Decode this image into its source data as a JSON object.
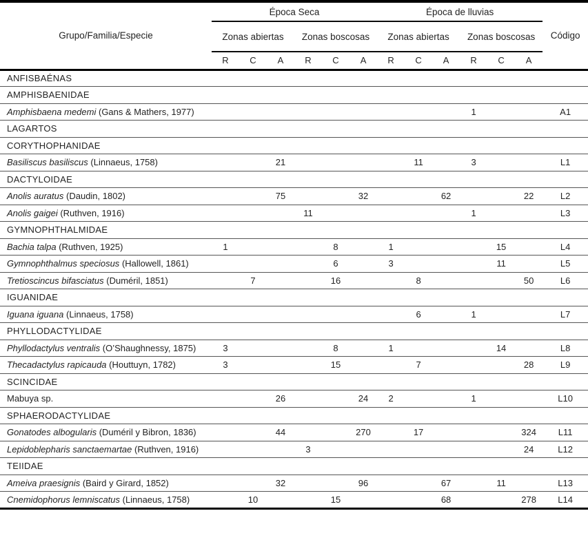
{
  "table": {
    "header": {
      "col1": "Grupo/Familia/Especie",
      "seasons": [
        "Época Seca",
        "Época de lluvias"
      ],
      "zones": [
        "Zonas abiertas",
        "Zonas boscosas",
        "Zonas abiertas",
        "Zonas boscosas"
      ],
      "subcols": [
        "R",
        "C",
        "A",
        "R",
        "C",
        "A",
        "R",
        "C",
        "A",
        "R",
        "C",
        "A"
      ],
      "code_col": "Código"
    },
    "rows": [
      {
        "type": "group",
        "label": "ANFISBAÉNAS"
      },
      {
        "type": "group",
        "label": "AMPHISBAENIDAE"
      },
      {
        "type": "species",
        "name": "Amphisbaena medemi",
        "authority": "(Gans & Mathers, 1977)",
        "values": [
          "",
          "",
          "",
          "",
          "",
          "",
          "",
          "",
          "",
          "1",
          "",
          ""
        ],
        "code": "A1"
      },
      {
        "type": "group",
        "label": "LAGARTOS"
      },
      {
        "type": "group",
        "label": "CORYTHOPHANIDAE"
      },
      {
        "type": "species",
        "name": "Basiliscus basiliscus",
        "authority": "(Linnaeus, 1758)",
        "values": [
          "",
          "",
          "21",
          "",
          "",
          "",
          "",
          "11",
          "",
          "3",
          "",
          ""
        ],
        "code": "L1"
      },
      {
        "type": "group",
        "label": "DACTYLOIDAE"
      },
      {
        "type": "species",
        "name": "Anolis auratus",
        "authority": "(Daudin, 1802)",
        "values": [
          "",
          "",
          "75",
          "",
          "",
          "32",
          "",
          "",
          "62",
          "",
          "",
          "22"
        ],
        "code": "L2"
      },
      {
        "type": "species",
        "name": "Anolis gaigei",
        "authority": "(Ruthven, 1916)",
        "values": [
          "",
          "",
          "",
          "11",
          "",
          "",
          "",
          "",
          "",
          "1",
          "",
          ""
        ],
        "code": "L3"
      },
      {
        "type": "group",
        "label": "GYMNOPHTHALMIDAE"
      },
      {
        "type": "species",
        "name": "Bachia talpa",
        "authority": "(Ruthven, 1925)",
        "values": [
          "1",
          "",
          "",
          "",
          "8",
          "",
          "1",
          "",
          "",
          "",
          "15",
          ""
        ],
        "code": "L4"
      },
      {
        "type": "species",
        "name": "Gymnophthalmus speciosus",
        "authority": "(Hallowell, 1861)",
        "values": [
          "",
          "",
          "",
          "",
          "6",
          "",
          "3",
          "",
          "",
          "",
          "11",
          ""
        ],
        "code": "L5"
      },
      {
        "type": "species",
        "name": "Tretioscincus bifasciatus",
        "authority": "(Duméril, 1851)",
        "values": [
          "",
          "7",
          "",
          "",
          "16",
          "",
          "",
          "8",
          "",
          "",
          "",
          "50"
        ],
        "code": "L6"
      },
      {
        "type": "group",
        "label": "IGUANIDAE"
      },
      {
        "type": "species",
        "name": "Iguana iguana",
        "authority": "(Linnaeus, 1758)",
        "values": [
          "",
          "",
          "",
          "",
          "",
          "",
          "",
          "6",
          "",
          "1",
          "",
          ""
        ],
        "code": "L7"
      },
      {
        "type": "group",
        "label": "PHYLLODACTYLIDAE"
      },
      {
        "type": "species",
        "name": "Phyllodactylus ventralis",
        "authority": "(O’Shaughnessy, 1875)",
        "values": [
          "3",
          "",
          "",
          "",
          "8",
          "",
          "1",
          "",
          "",
          "",
          "14",
          ""
        ],
        "code": "L8"
      },
      {
        "type": "species",
        "name": "Thecadactylus rapicauda",
        "authority": "(Houttuyn, 1782)",
        "values": [
          "3",
          "",
          "",
          "",
          "15",
          "",
          "",
          "7",
          "",
          "",
          "",
          "28"
        ],
        "code": "L9"
      },
      {
        "type": "group",
        "label": "SCINCIDAE"
      },
      {
        "type": "species",
        "name": "Mabuya sp.",
        "authority": "",
        "upright": true,
        "values": [
          "",
          "",
          "26",
          "",
          "",
          "24",
          "2",
          "",
          "",
          "1",
          "",
          ""
        ],
        "code": "L10"
      },
      {
        "type": "group",
        "label": "SPHAERODACTYLIDAE"
      },
      {
        "type": "species",
        "name": "Gonatodes albogularis",
        "authority": "(Duméril y Bibron, 1836)",
        "values": [
          "",
          "",
          "44",
          "",
          "",
          "270",
          "",
          "17",
          "",
          "",
          "",
          "324"
        ],
        "code": "L11"
      },
      {
        "type": "species",
        "name": "Lepidoblepharis sanctaemartae",
        "authority": "(Ruthven, 1916)",
        "values": [
          "",
          "",
          "",
          "3",
          "",
          "",
          "",
          "",
          "",
          "",
          "",
          "24"
        ],
        "code": "L12"
      },
      {
        "type": "group",
        "label": "TEIIDAE"
      },
      {
        "type": "species",
        "name": "Ameiva praesignis",
        "authority": "(Baird y Girard, 1852)",
        "values": [
          "",
          "",
          "32",
          "",
          "",
          "96",
          "",
          "",
          "67",
          "",
          "11",
          ""
        ],
        "code": "L13"
      },
      {
        "type": "species",
        "name": "Cnemidophorus lemniscatus",
        "authority": "(Linnaeus, 1758)",
        "values": [
          "",
          "10",
          "",
          "",
          "15",
          "",
          "",
          "",
          "68",
          "",
          "",
          "278"
        ],
        "code": "L14"
      }
    ]
  },
  "colors": {
    "background": "#ffffff",
    "text": "#232323",
    "rule_thick": "#000000",
    "rule_thin": "#545454"
  }
}
